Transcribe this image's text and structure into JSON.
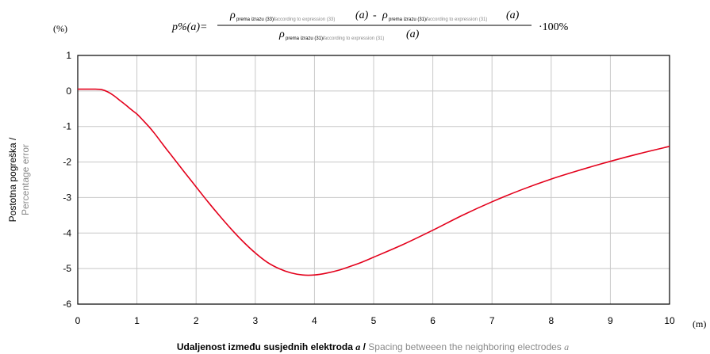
{
  "chart_data": {
    "type": "line",
    "x_unit": "(m)",
    "y_unit": "(%)",
    "formula": {
      "lhs": "p%(a)=",
      "numerator_a": "ρ",
      "numerator_a_sub_black": "prema izrazu (33)/",
      "numerator_a_sub_grey": "according to expression (33)",
      "numerator_a_arg": "(a)",
      "minus": "-",
      "numerator_b": "ρ",
      "numerator_b_sub_black": "prema izrazu (31)/",
      "numerator_b_sub_grey": "according to expression (31)",
      "numerator_b_arg": "(a)",
      "denominator": "ρ",
      "denominator_sub_black": "prema izrazu (31)/",
      "denominator_sub_grey": "according to expression (31)",
      "denominator_arg": "(a)",
      "factor": "·100%"
    },
    "xlabel_primary": "Udaljenost između susjednih elektroda ",
    "xlabel_primary_var": "a",
    "xlabel_sep": " / ",
    "xlabel_secondary": "Spacing betweeen the neighboring electrodes ",
    "xlabel_secondary_var": "a",
    "ylabel_primary": "Postotna pogreška /",
    "ylabel_secondary": "Percentage error",
    "xlim": [
      0,
      10
    ],
    "ylim": [
      -6,
      1
    ],
    "xticks": [
      "0",
      "1",
      "2",
      "3",
      "4",
      "5",
      "6",
      "7",
      "8",
      "9",
      "10"
    ],
    "yticks": [
      "1",
      "0",
      "-1",
      "-2",
      "-3",
      "-4",
      "-5",
      "-6"
    ],
    "grid": true,
    "series": [
      {
        "color": "#e3001b",
        "x": [
          0,
          0.1,
          0.2,
          0.3,
          0.4,
          0.5,
          0.6,
          0.7,
          0.8,
          0.9,
          1.0,
          1.1,
          1.2,
          1.3,
          1.4,
          1.5,
          1.6,
          1.8,
          2.0,
          2.2,
          2.4,
          2.6,
          2.8,
          3.0,
          3.2,
          3.4,
          3.6,
          3.8,
          4.0,
          4.2,
          4.4,
          4.6,
          4.8,
          5.0,
          5.5,
          6.0,
          6.5,
          7.0,
          7.5,
          8.0,
          8.5,
          9.0,
          9.5,
          10.0
        ],
        "y": [
          0.05,
          0.05,
          0.05,
          0.05,
          0.04,
          -0.02,
          -0.12,
          -0.25,
          -0.38,
          -0.52,
          -0.65,
          -0.82,
          -1.0,
          -1.2,
          -1.42,
          -1.64,
          -1.85,
          -2.28,
          -2.7,
          -3.12,
          -3.52,
          -3.9,
          -4.25,
          -4.56,
          -4.82,
          -5.0,
          -5.12,
          -5.18,
          -5.18,
          -5.13,
          -5.05,
          -4.94,
          -4.82,
          -4.68,
          -4.32,
          -3.92,
          -3.5,
          -3.12,
          -2.78,
          -2.48,
          -2.22,
          -1.98,
          -1.76,
          -1.56
        ]
      }
    ]
  }
}
